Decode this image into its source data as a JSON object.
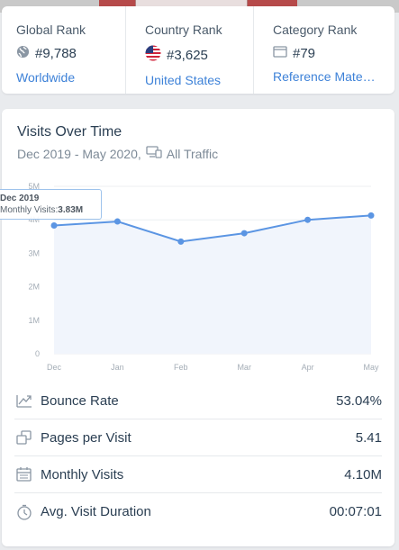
{
  "ranks": [
    {
      "label": "Global Rank",
      "value": "#9,788",
      "link": "Worldwide",
      "icon": "globe-icon"
    },
    {
      "label": "Country Rank",
      "value": "#3,625",
      "link": "United States",
      "icon": "us-flag-icon"
    },
    {
      "label": "Category Rank",
      "value": "#79",
      "link": "Reference Materi...",
      "icon": "category-icon"
    }
  ],
  "visits": {
    "title": "Visits Over Time",
    "date_range": "Dec 2019 - May 2020,",
    "traffic": "All Traffic"
  },
  "tooltip": {
    "date": "Dec 2019",
    "label": "Monthly Visits:",
    "value": "3.83M"
  },
  "chart_data": {
    "type": "area",
    "categories": [
      "Dec",
      "Jan",
      "Feb",
      "Mar",
      "Apr",
      "May"
    ],
    "values": [
      3.83,
      3.95,
      3.35,
      3.6,
      4.0,
      4.13
    ],
    "ylim": [
      0,
      5
    ],
    "yticks": [
      "0",
      "1M",
      "2M",
      "3M",
      "4M",
      "5M"
    ],
    "grid": true,
    "line_color": "#5b95e3",
    "fill_color": "#f1f5fc"
  },
  "metrics": [
    {
      "label": "Bounce Rate",
      "value": "53.04%",
      "icon": "bounce-rate-icon"
    },
    {
      "label": "Pages per Visit",
      "value": "5.41",
      "icon": "pages-icon"
    },
    {
      "label": "Monthly Visits",
      "value": "4.10M",
      "icon": "calendar-icon"
    },
    {
      "label": "Avg. Visit Duration",
      "value": "00:07:01",
      "icon": "stopwatch-icon"
    }
  ]
}
